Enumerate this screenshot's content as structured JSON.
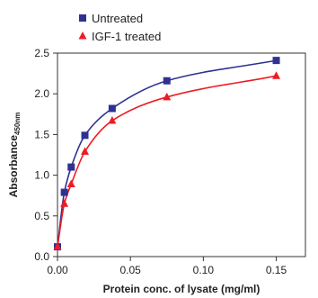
{
  "chart_data": {
    "type": "line",
    "title": "",
    "xlabel": "Protein conc. of lysate (mg/ml)",
    "ylabel": {
      "main": "Absorbance",
      "subscript": "450nm"
    },
    "xlim": [
      0,
      0.17
    ],
    "ylim": [
      0,
      2.5
    ],
    "xticks": [
      0,
      0.05,
      0.1,
      0.15
    ],
    "xtick_labels": [
      "0.00",
      "0.05",
      "0.10",
      "0.15"
    ],
    "yticks": [
      0,
      0.5,
      1,
      1.5,
      2,
      2.5
    ],
    "ytick_labels": [
      "0.0",
      "0.5",
      "1.0",
      "1.5",
      "2.0",
      "2.5"
    ],
    "grid": false,
    "legend_position": "top-left",
    "series": [
      {
        "name": "Untreated",
        "marker": "square",
        "color": "#2e3192",
        "x": [
          0,
          0.0047,
          0.0094,
          0.0188,
          0.0375,
          0.075,
          0.15
        ],
        "y": [
          0.12,
          0.79,
          1.1,
          1.49,
          1.82,
          2.16,
          2.41
        ]
      },
      {
        "name": "IGF-1 treated",
        "marker": "triangle",
        "color": "#ed1c24",
        "x": [
          0,
          0.0047,
          0.0094,
          0.0188,
          0.0375,
          0.075,
          0.15
        ],
        "y": [
          0.12,
          0.65,
          0.89,
          1.29,
          1.67,
          1.96,
          2.22
        ]
      }
    ]
  }
}
